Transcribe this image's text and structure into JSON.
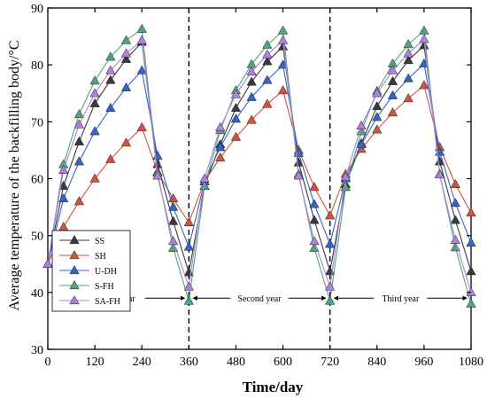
{
  "chart_data": {
    "type": "line",
    "title": "",
    "xlabel": "Time/day",
    "ylabel": "Average temperature of the backfilling body/°C",
    "xlim": [
      0,
      1080
    ],
    "ylim": [
      30,
      90
    ],
    "x_ticks": [
      0,
      120,
      240,
      360,
      480,
      600,
      720,
      840,
      960,
      1080
    ],
    "y_ticks": [
      30,
      40,
      50,
      60,
      70,
      80,
      90
    ],
    "x_tick_labels": [
      "0",
      "120",
      "240",
      "360",
      "480",
      "600",
      "720",
      "840",
      "960",
      "1080"
    ],
    "y_tick_labels": [
      "30",
      "40",
      "50",
      "60",
      "70",
      "80",
      "90"
    ],
    "grid": false,
    "legend_position": "lower-left",
    "year_dividers": [
      360,
      720
    ],
    "year_labels": [
      {
        "text": "First year",
        "from": 0,
        "to": 360,
        "y": 39
      },
      {
        "text": "Second year",
        "from": 360,
        "to": 720,
        "y": 39
      },
      {
        "text": "Third year",
        "from": 720,
        "to": 1080,
        "y": 39
      }
    ],
    "series": [
      {
        "name": "SS",
        "color": "#3a3a3a",
        "x": [
          0,
          40,
          80,
          120,
          160,
          200,
          240,
          280,
          320,
          360,
          400,
          440,
          480,
          520,
          560,
          600,
          640,
          680,
          720,
          760,
          800,
          840,
          880,
          920,
          960,
          1000,
          1040,
          1080
        ],
        "y": [
          45.0,
          58.7,
          66.5,
          73.2,
          77.3,
          81.0,
          84.0,
          62.5,
          52.5,
          43.5,
          58.7,
          66.0,
          72.4,
          77.0,
          80.6,
          83.2,
          62.8,
          52.7,
          43.7,
          59.0,
          66.2,
          72.7,
          77.1,
          80.8,
          83.4,
          63.0,
          52.7,
          43.7
        ]
      },
      {
        "name": "SH",
        "color": "#d3523b",
        "x": [
          0,
          40,
          80,
          120,
          160,
          200,
          240,
          280,
          320,
          360,
          400,
          440,
          480,
          520,
          560,
          600,
          640,
          680,
          720,
          760,
          800,
          840,
          880,
          920,
          960,
          1000,
          1040,
          1080
        ],
        "y": [
          45.0,
          51.5,
          56.0,
          60.0,
          63.4,
          66.3,
          69.0,
          61.2,
          56.5,
          52.3,
          59.5,
          63.7,
          67.3,
          70.3,
          73.1,
          75.5,
          65.0,
          58.5,
          53.5,
          60.8,
          65.2,
          68.6,
          71.6,
          74.1,
          76.4,
          65.5,
          59.0,
          54.0
        ]
      },
      {
        "name": "U-DH",
        "color": "#3563c9",
        "x": [
          0,
          40,
          80,
          120,
          160,
          200,
          240,
          280,
          320,
          360,
          400,
          440,
          480,
          520,
          560,
          600,
          640,
          680,
          720,
          760,
          800,
          840,
          880,
          920,
          960,
          1000,
          1040,
          1080
        ],
        "y": [
          45.0,
          56.5,
          63.0,
          68.3,
          72.4,
          76.0,
          79.0,
          64.0,
          55.0,
          48.0,
          59.5,
          65.5,
          70.5,
          74.3,
          77.3,
          80.0,
          64.5,
          55.5,
          48.5,
          60.0,
          66.0,
          70.8,
          74.6,
          77.6,
          80.2,
          64.7,
          55.7,
          48.7
        ]
      },
      {
        "name": "S-FH",
        "color": "#4ea57a",
        "x": [
          0,
          40,
          80,
          120,
          160,
          200,
          240,
          280,
          320,
          360,
          400,
          440,
          480,
          520,
          560,
          600,
          640,
          680,
          720,
          760,
          800,
          840,
          880,
          920,
          960,
          1000,
          1040,
          1080
        ],
        "y": [
          45.0,
          62.5,
          71.3,
          77.2,
          81.4,
          84.3,
          86.3,
          61.0,
          47.8,
          38.5,
          58.7,
          68.5,
          75.5,
          80.1,
          83.5,
          86.0,
          60.8,
          47.8,
          38.5,
          58.5,
          68.3,
          75.4,
          80.2,
          83.6,
          86.0,
          60.8,
          47.9,
          38.0
        ]
      },
      {
        "name": "SA-FH",
        "color": "#b27fe0",
        "x": [
          0,
          40,
          80,
          120,
          160,
          200,
          240,
          280,
          320,
          360,
          400,
          440,
          480,
          520,
          560,
          600,
          640,
          680,
          720,
          760,
          800,
          840,
          880,
          920,
          960,
          1000,
          1040,
          1080
        ],
        "y": [
          45.0,
          61.5,
          69.5,
          75.0,
          79.0,
          82.0,
          84.3,
          60.5,
          49.0,
          41.0,
          60.0,
          69.0,
          74.8,
          78.8,
          81.8,
          84.3,
          60.5,
          49.0,
          41.0,
          60.3,
          69.3,
          75.0,
          79.0,
          82.0,
          84.5,
          60.7,
          49.2,
          40.0
        ]
      }
    ]
  }
}
